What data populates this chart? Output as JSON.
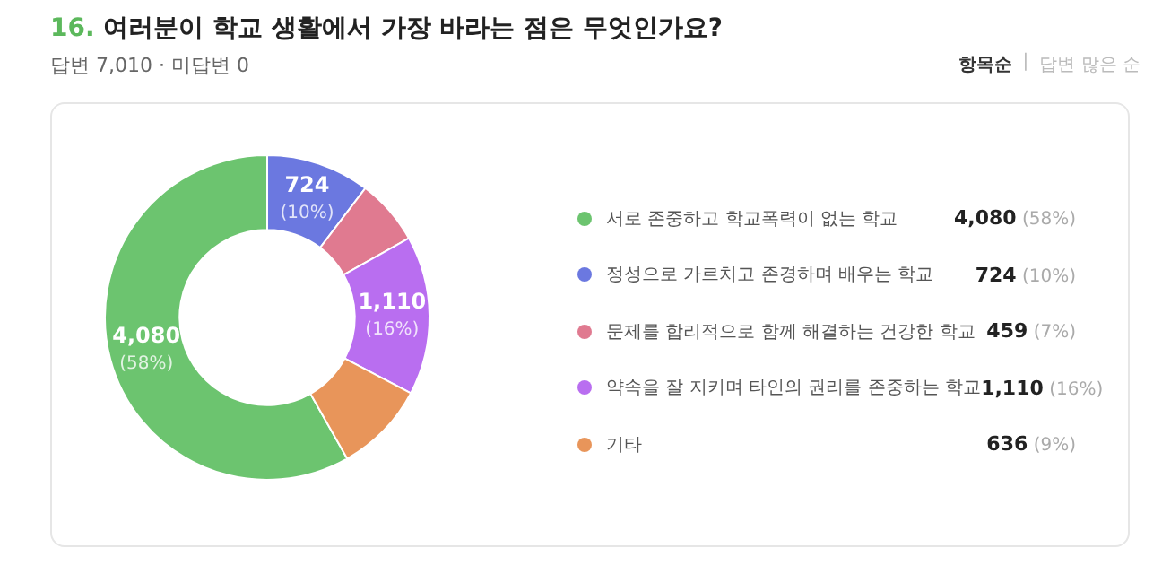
{
  "chart_data": {
    "type": "donut",
    "title": "16. 여러분이 학교 생활에서 가장 바라는 점은 무엇인가요?",
    "subtitle": "답변 7,010 · 미답변 0",
    "annotations": [
      "항목순",
      "|",
      "답변 많은 순"
    ],
    "categories": [
      "서로 존중하고 학교폭력이 없는 학교",
      "정성으로 가르치고 존경하며 배우는 학교",
      "문제를 합리적으로 함께 해결하는 건강한 학교",
      "약속을 잘 지키며 타인의 권리를 존중하는 학교",
      "기타"
    ],
    "values": [
      4080,
      724,
      459,
      1110,
      636
    ],
    "value_labels": [
      "4,080 (58%)",
      "724 (10%)",
      "459 (7%)",
      "1,110 (16%)",
      "636 (9%)"
    ],
    "colors": [
      "#6cc46f",
      "#6b78e0",
      "#e07a90",
      "#b96ef0",
      "#e8955a"
    ],
    "legend": "right"
  }
}
